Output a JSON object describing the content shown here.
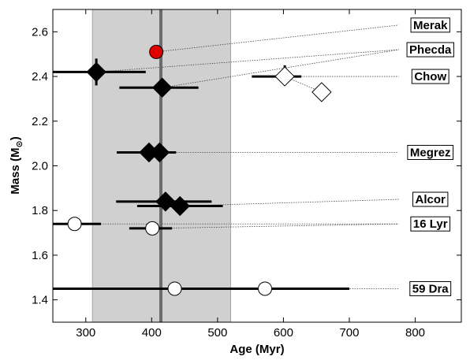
{
  "chart_data": {
    "type": "scatter",
    "title": "",
    "xlabel": "Age (Myr)",
    "ylabel": "Mass (M",
    "ylabel_sub": "⊙",
    "ylabel_close": ")",
    "xlim": [
      250,
      870
    ],
    "ylim": [
      1.3,
      2.7
    ],
    "x_ticks": [
      300,
      400,
      500,
      600,
      700,
      800
    ],
    "x_tick_labels": [
      "300",
      "400",
      "500",
      "600",
      "700",
      "800"
    ],
    "y_ticks": [
      1.4,
      1.6,
      1.8,
      2.0,
      2.2,
      2.4,
      2.6
    ],
    "y_tick_labels": [
      "1.4",
      "1.6",
      "1.8",
      "2.0",
      "2.2",
      "2.4",
      "2.6"
    ],
    "grid": false,
    "shaded_band": {
      "x_range": [
        310,
        520
      ],
      "color": "#d0d0d0"
    },
    "vertical_line": {
      "x": 414,
      "color": "#6b6b6b"
    },
    "points": [
      {
        "star": "Merak",
        "x": 407,
        "y": 2.51,
        "marker": "circle",
        "fill": "#e00000",
        "xerr": null,
        "yerr": null
      },
      {
        "star": "Phecda",
        "x": 316,
        "y": 2.42,
        "marker": "diamond",
        "fill": "#000000",
        "xerr": [
          70,
          75
        ],
        "yerr": [
          0.06,
          0.06
        ]
      },
      {
        "star": "Phecda",
        "x": 416,
        "y": 2.35,
        "marker": "diamond",
        "fill": "#000000",
        "xerr": [
          65,
          55
        ],
        "yerr": [
          0.04,
          0.02
        ]
      },
      {
        "star": "Chow",
        "x": 602,
        "y": 2.4,
        "marker": "diamond",
        "fill": "#ffffff",
        "xerr": [
          50,
          25
        ],
        "yerr": [
          0.05,
          0.0
        ]
      },
      {
        "star": "Chow",
        "x": 658,
        "y": 2.33,
        "marker": "diamond",
        "fill": "#ffffff",
        "xerr": null,
        "yerr": null
      },
      {
        "star": "Megrez",
        "x": 396,
        "y": 2.06,
        "marker": "diamond",
        "fill": "#000000",
        "xerr": [
          30,
          35
        ],
        "yerr": null
      },
      {
        "star": "Megrez",
        "x": 412,
        "y": 2.06,
        "marker": "diamond",
        "fill": "#000000",
        "xerr": [
          65,
          25
        ],
        "yerr": null
      },
      {
        "star": "Alcor",
        "x": 421,
        "y": 1.84,
        "marker": "diamond",
        "fill": "#000000",
        "xerr": [
          75,
          70
        ],
        "yerr": null
      },
      {
        "star": "Alcor",
        "x": 443,
        "y": 1.82,
        "marker": "diamond",
        "fill": "#000000",
        "xerr": [
          65,
          65
        ],
        "yerr": null
      },
      {
        "star": "16 Lyr",
        "x": 283,
        "y": 1.74,
        "marker": "circle",
        "fill": "#ffffff",
        "xerr": [
          33,
          40
        ],
        "yerr": null
      },
      {
        "star": "16 Lyr",
        "x": 401,
        "y": 1.72,
        "marker": "circle",
        "fill": "#ffffff",
        "xerr": [
          35,
          30
        ],
        "yerr": null
      },
      {
        "star": "59 Dra",
        "x": 435,
        "y": 1.45,
        "marker": "circle",
        "fill": "#ffffff",
        "xerr": [
          185,
          0
        ],
        "yerr": null
      },
      {
        "star": "59 Dra",
        "x": 572,
        "y": 1.45,
        "marker": "circle",
        "fill": "#ffffff",
        "xerr": [
          150,
          128
        ],
        "yerr": null
      }
    ],
    "labels": [
      {
        "text": "Merak",
        "x": 823,
        "y": 2.63
      },
      {
        "text": "Phecda",
        "x": 823,
        "y": 2.52
      },
      {
        "text": "Chow",
        "x": 823,
        "y": 2.4
      },
      {
        "text": "Megrez",
        "x": 823,
        "y": 2.06
      },
      {
        "text": "Alcor",
        "x": 823,
        "y": 1.85
      },
      {
        "text": "16 Lyr",
        "x": 823,
        "y": 1.74
      },
      {
        "text": "59 Dra",
        "x": 823,
        "y": 1.45
      }
    ],
    "connectors": [
      {
        "label": "Merak",
        "x0": 407,
        "y0": 2.51,
        "x1": 775,
        "y1": 2.63
      },
      {
        "label": "Phecda",
        "x0": 316,
        "y0": 2.42,
        "x1": 775,
        "y1": 2.52
      },
      {
        "label": "Phecda",
        "x0": 416,
        "y0": 2.35,
        "x1": 775,
        "y1": 2.52
      },
      {
        "label": "Chow",
        "x0": 602,
        "y0": 2.4,
        "x1": 775,
        "y1": 2.4
      },
      {
        "label": "Chow",
        "x0": 602,
        "y0": 2.4,
        "x1": 658,
        "y1": 2.33
      },
      {
        "label": "Megrez",
        "x0": 412,
        "y0": 2.06,
        "x1": 775,
        "y1": 2.06
      },
      {
        "label": "Alcor",
        "x0": 443,
        "y0": 1.82,
        "x1": 775,
        "y1": 1.85
      },
      {
        "label": "16 Lyr",
        "x0": 283,
        "y0": 1.74,
        "x1": 775,
        "y1": 1.74
      },
      {
        "label": "16 Lyr",
        "x0": 401,
        "y0": 1.72,
        "x1": 775,
        "y1": 1.74
      },
      {
        "label": "59 Dra",
        "x0": 435,
        "y0": 1.45,
        "x1": 775,
        "y1": 1.45
      }
    ]
  }
}
